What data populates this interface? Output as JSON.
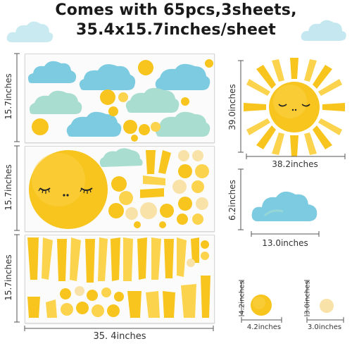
{
  "headline": {
    "line1": "Comes with 65pcs,3sheets,",
    "line2": "35.4x15.7inches/sheet"
  },
  "sheets": {
    "sheet1_height": "15.7inches",
    "sheet2_height": "15.7inches",
    "sheet3_height": "15.7inches",
    "width": "35. 4inches"
  },
  "pieces": {
    "sun_width": "38.2inches",
    "sun_height": "39.0inches",
    "cloud_width": "13.0inches",
    "cloud_height": "6.2inches",
    "large_dot_width": "4.2inches",
    "large_dot_height": "4.2inches",
    "small_dot_width": "3.0inches",
    "small_dot_height": "3.0inches"
  },
  "colors": {
    "sun_yellow": "#F7C51E",
    "sun_light": "#FCE27A",
    "dot_pale": "#F8E2A8",
    "cloud_blue": "#7CCBE0",
    "cloud_mint": "#A9DDD0"
  }
}
